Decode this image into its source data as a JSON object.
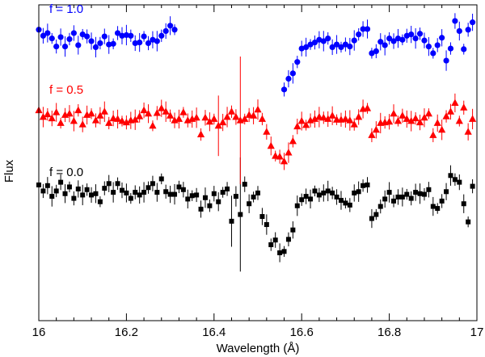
{
  "chart_data": {
    "type": "scatter",
    "title": "",
    "xlabel": "Wavelength (Å)",
    "ylabel": "Flux",
    "xlim": [
      16.0,
      17.0
    ],
    "ylim": [
      -0.6,
      4.1
    ],
    "x_ticks": [
      16,
      16.2,
      16.4,
      16.6,
      16.8,
      17
    ],
    "x_tick_labels": [
      "16",
      "16.2",
      "16.4",
      "16.6",
      "16.8",
      "17"
    ],
    "grid": false,
    "y_tick_labels_shown": false,
    "series": [
      {
        "name": "f = 0.0",
        "color": "#000000",
        "marker": "square",
        "x": [
          16.0,
          16.01,
          16.02,
          16.03,
          16.04,
          16.05,
          16.06,
          16.07,
          16.08,
          16.09,
          16.1,
          16.11,
          16.12,
          16.13,
          16.14,
          16.15,
          16.16,
          16.17,
          16.18,
          16.19,
          16.2,
          16.21,
          16.22,
          16.23,
          16.24,
          16.25,
          16.26,
          16.27,
          16.28,
          16.29,
          16.3,
          16.31,
          16.32,
          16.33,
          16.34,
          16.35,
          16.36,
          16.37,
          16.38,
          16.39,
          16.4,
          16.41,
          16.42,
          16.43,
          16.44,
          16.45,
          16.46,
          16.47,
          16.48,
          16.49,
          16.5,
          16.51,
          16.52,
          16.53,
          16.54,
          16.55,
          16.56,
          16.57,
          16.58,
          16.59,
          16.6,
          16.61,
          16.62,
          16.63,
          16.64,
          16.65,
          16.66,
          16.67,
          16.68,
          16.69,
          16.7,
          16.71,
          16.72,
          16.73,
          16.74,
          16.75,
          16.76,
          16.77,
          16.78,
          16.79,
          16.8,
          16.81,
          16.82,
          16.83,
          16.84,
          16.85,
          16.86,
          16.87,
          16.88,
          16.89,
          16.9,
          16.91,
          16.92,
          16.93,
          16.94,
          16.95,
          16.96,
          16.97,
          16.98,
          16.99
        ],
        "y": [
          1.42,
          1.33,
          1.41,
          1.25,
          1.33,
          1.46,
          1.29,
          1.39,
          1.22,
          1.36,
          1.27,
          1.35,
          1.27,
          1.29,
          1.17,
          1.37,
          1.44,
          1.31,
          1.44,
          1.34,
          1.3,
          1.22,
          1.31,
          1.27,
          1.31,
          1.38,
          1.44,
          1.31,
          1.51,
          1.32,
          1.28,
          1.28,
          1.39,
          1.35,
          1.21,
          1.26,
          1.27,
          1.06,
          1.23,
          1.11,
          1.29,
          1.17,
          1.31,
          1.36,
          0.88,
          1.25,
          0.98,
          1.43,
          1.14,
          1.24,
          1.3,
          0.95,
          0.83,
          0.53,
          0.6,
          0.41,
          0.43,
          0.61,
          0.75,
          1.11,
          1.2,
          1.25,
          1.21,
          1.33,
          1.27,
          1.3,
          1.33,
          1.3,
          1.24,
          1.19,
          1.15,
          1.12,
          1.3,
          1.32,
          1.41,
          1.42,
          0.92,
          0.98,
          1.1,
          1.21,
          1.31,
          1.18,
          1.24,
          1.24,
          1.28,
          1.22,
          1.31,
          1.29,
          1.28,
          1.35,
          1.1,
          1.07,
          1.18,
          1.32,
          1.56,
          1.5,
          1.46,
          1.14,
          0.87,
          1.4
        ]
      },
      {
        "name": "f = 0.5",
        "color": "#ff0000",
        "marker": "triangle",
        "x": [
          16.0,
          16.01,
          16.02,
          16.03,
          16.04,
          16.05,
          16.06,
          16.07,
          16.08,
          16.09,
          16.1,
          16.11,
          16.12,
          16.13,
          16.14,
          16.15,
          16.16,
          16.17,
          16.18,
          16.19,
          16.2,
          16.21,
          16.22,
          16.23,
          16.24,
          16.25,
          16.26,
          16.27,
          16.28,
          16.29,
          16.3,
          16.31,
          16.32,
          16.33,
          16.34,
          16.35,
          16.36,
          16.37,
          16.38,
          16.39,
          16.4,
          16.41,
          16.42,
          16.43,
          16.44,
          16.45,
          16.46,
          16.47,
          16.48,
          16.49,
          16.5,
          16.51,
          16.52,
          16.53,
          16.54,
          16.55,
          16.56,
          16.57,
          16.58,
          16.59,
          16.6,
          16.61,
          16.62,
          16.63,
          16.64,
          16.65,
          16.66,
          16.67,
          16.68,
          16.69,
          16.7,
          16.71,
          16.72,
          16.73,
          16.74,
          16.75,
          16.76,
          16.77,
          16.78,
          16.79,
          16.8,
          16.81,
          16.82,
          16.83,
          16.84,
          16.85,
          16.86,
          16.87,
          16.88,
          16.89,
          16.9,
          16.91,
          16.92,
          16.93,
          16.94,
          16.95,
          16.96,
          16.97,
          16.98,
          16.99
        ],
        "y": [
          2.53,
          2.43,
          2.47,
          2.41,
          2.5,
          2.34,
          2.46,
          2.48,
          2.37,
          2.53,
          2.32,
          2.46,
          2.48,
          2.38,
          2.45,
          2.51,
          2.34,
          2.41,
          2.4,
          2.37,
          2.35,
          2.38,
          2.39,
          2.44,
          2.53,
          2.48,
          2.3,
          2.49,
          2.56,
          2.51,
          2.45,
          2.38,
          2.4,
          2.5,
          2.38,
          2.4,
          2.42,
          2.17,
          2.42,
          2.36,
          2.4,
          2.3,
          2.35,
          2.43,
          2.51,
          2.43,
          2.38,
          2.4,
          2.46,
          2.45,
          2.54,
          2.4,
          2.21,
          2.0,
          1.85,
          1.84,
          1.77,
          1.9,
          2.07,
          2.29,
          2.37,
          2.31,
          2.38,
          2.4,
          2.43,
          2.42,
          2.4,
          2.45,
          2.39,
          2.39,
          2.4,
          2.38,
          2.32,
          2.43,
          2.55,
          2.56,
          2.16,
          2.24,
          2.34,
          2.35,
          2.36,
          2.48,
          2.37,
          2.45,
          2.4,
          2.37,
          2.41,
          2.35,
          2.42,
          2.48,
          2.16,
          2.34,
          2.24,
          2.44,
          2.51,
          2.64,
          2.37,
          2.57,
          2.21,
          2.4
        ]
      },
      {
        "name": "f = 1.0",
        "color": "#0000ff",
        "marker": "circle",
        "x": [
          16.0,
          16.01,
          16.02,
          16.03,
          16.04,
          16.05,
          16.06,
          16.07,
          16.08,
          16.09,
          16.1,
          16.11,
          16.12,
          16.13,
          16.14,
          16.15,
          16.16,
          16.17,
          16.18,
          16.19,
          16.2,
          16.21,
          16.22,
          16.23,
          16.24,
          16.25,
          16.26,
          16.27,
          16.28,
          16.29,
          16.3,
          16.31,
          16.56,
          16.57,
          16.58,
          16.59,
          16.6,
          16.61,
          16.62,
          16.63,
          16.64,
          16.65,
          16.66,
          16.67,
          16.68,
          16.69,
          16.7,
          16.71,
          16.72,
          16.73,
          16.74,
          16.75,
          16.76,
          16.77,
          16.78,
          16.79,
          16.8,
          16.81,
          16.82,
          16.83,
          16.84,
          16.85,
          16.86,
          16.87,
          16.88,
          16.89,
          16.9,
          16.91,
          16.92,
          16.93,
          16.94,
          16.95,
          16.96,
          16.97,
          16.98,
          16.99
        ],
        "y": [
          3.73,
          3.64,
          3.68,
          3.6,
          3.48,
          3.62,
          3.48,
          3.59,
          3.68,
          3.5,
          3.66,
          3.63,
          3.56,
          3.47,
          3.53,
          3.63,
          3.51,
          3.52,
          3.68,
          3.64,
          3.65,
          3.64,
          3.53,
          3.54,
          3.63,
          3.53,
          3.58,
          3.56,
          3.64,
          3.71,
          3.79,
          3.73,
          2.84,
          3.0,
          3.08,
          3.25,
          3.45,
          3.47,
          3.51,
          3.54,
          3.58,
          3.56,
          3.6,
          3.47,
          3.51,
          3.47,
          3.51,
          3.48,
          3.57,
          3.66,
          3.74,
          3.74,
          3.38,
          3.41,
          3.55,
          3.5,
          3.6,
          3.56,
          3.6,
          3.58,
          3.64,
          3.66,
          3.6,
          3.67,
          3.57,
          3.48,
          3.38,
          3.5,
          3.61,
          3.27,
          3.45,
          3.86,
          3.71,
          3.44,
          3.73,
          3.84
        ]
      }
    ],
    "annotations": [
      "f = 1.0",
      "f = 0.5",
      "f = 0.0"
    ]
  },
  "colors": {
    "series_0": "#000000",
    "series_1": "#ff0000",
    "series_2": "#0000ff"
  }
}
